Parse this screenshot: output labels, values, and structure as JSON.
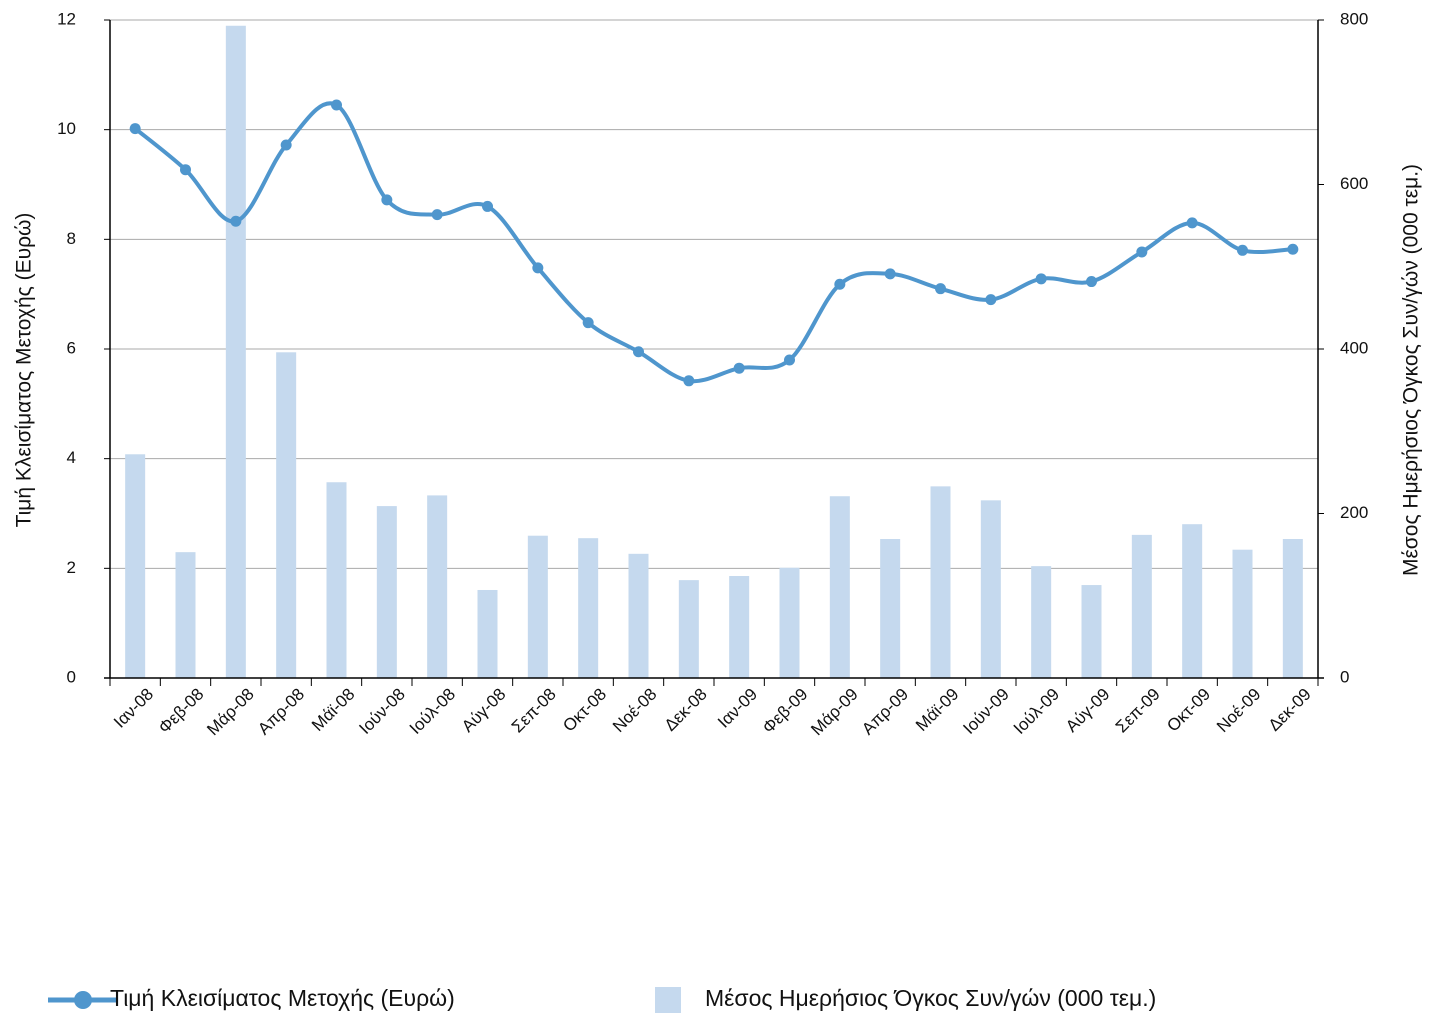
{
  "chart_data": {
    "type": "bar_line",
    "categories": [
      "Ιαν-08",
      "Φεβ-08",
      "Μάρ-08",
      "Απρ-08",
      "Μάϊ-08",
      "Ιούν-08",
      "Ιούλ-08",
      "Αύγ-08",
      "Σεπ-08",
      "Οκτ-08",
      "Νοέ-08",
      "Δεκ-08",
      "Ιαν-09",
      "Φεβ-09",
      "Μάρ-09",
      "Απρ-09",
      "Μάϊ-09",
      "Ιούν-09",
      "Ιούλ-09",
      "Αύγ-09",
      "Σεπ-09",
      "Οκτ-09",
      "Νοέ-09",
      "Δεκ-09"
    ],
    "y_label": "Τιμή Κλεισίματος Μετοχής (Ευρώ)",
    "y2_label": "Μέσος Ημερήσιος Όγκος Συν/γών (000 τεμ.)",
    "ylim": [
      0,
      12
    ],
    "yticks": [
      0,
      2,
      4,
      6,
      8,
      10,
      12
    ],
    "y2lim": [
      0,
      800
    ],
    "y2ticks": [
      0,
      200,
      400,
      600,
      800
    ],
    "grid": true,
    "series": [
      {
        "name": "Τιμή Κλεισίματος Μετοχής (Ευρώ)",
        "type": "line",
        "color": "#4f96cd",
        "values": [
          10.02,
          9.27,
          8.33,
          9.72,
          10.45,
          8.72,
          8.45,
          8.6,
          7.48,
          6.48,
          5.95,
          5.42,
          5.65,
          5.8,
          7.18,
          7.37,
          7.1,
          6.9,
          7.28,
          7.23,
          7.77,
          8.3,
          7.8,
          7.82
        ]
      },
      {
        "name": "Μέσος Ημερήσιος Όγκος Συν/γών (000 τεμ.)",
        "type": "bar",
        "axis": "y2",
        "color": "#c5d9ee",
        "values": [
          272,
          153,
          793,
          396,
          238,
          209,
          222,
          107,
          173,
          170,
          151,
          119,
          124,
          134,
          221,
          169,
          233,
          216,
          136,
          113,
          174,
          187,
          156,
          169
        ]
      }
    ]
  }
}
